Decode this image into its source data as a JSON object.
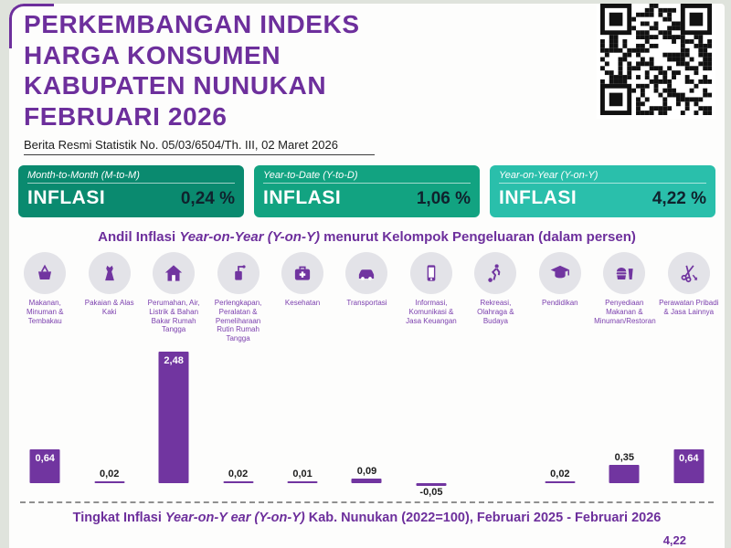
{
  "header": {
    "title_lines": [
      "PERKEMBANGAN INDEKS",
      "HARGA KONSUMEN",
      "KABUPATEN NUNUKAN",
      "FEBRUARI 2026"
    ],
    "subtitle": "Berita Resmi Statistik No. 05/03/6504/Th. III, 02 Maret 2026"
  },
  "colors": {
    "accent_purple": "#6d2f9c",
    "bar_purple": "#7135a0",
    "card_mtm": "#0a8a6f",
    "card_ytd": "#12a381",
    "card_yoy": "#2abfab"
  },
  "inflation_cards": [
    {
      "period": "Month-to-Month (M-to-M)",
      "label": "INFLASI",
      "value": "0,24 %",
      "color": "#0a8a6f"
    },
    {
      "period": "Year-to-Date (Y-to-D)",
      "label": "INFLASI",
      "value": "1,06 %",
      "color": "#12a381"
    },
    {
      "period": "Year-on-Year (Y-on-Y)",
      "label": "INFLASI",
      "value": "4,22 %",
      "color": "#2abfab"
    }
  ],
  "section": {
    "heading_prefix": "Andil Inflasi",
    "heading_italic": "Year-on-Year (Y-on-Y)",
    "heading_suffix": "menurut Kelompok Pengeluaran (dalam persen)"
  },
  "chart_data": {
    "type": "bar",
    "title": "Andil Inflasi Year-on-Year (Y-on-Y) menurut Kelompok Pengeluaran (dalam persen)",
    "unit": "persen",
    "categories": [
      "Makanan, Minuman & Tembakau",
      "Pakaian & Alas Kaki",
      "Perumahan, Air, Listrik & Bahan Bakar Rumah Tangga",
      "Perlengkapan, Peralatan & Pemeliharaan Rutin Rumah Tangga",
      "Kesehatan",
      "Transportasi",
      "Informasi, Komunikasi & Jasa Keuangan",
      "Rekreasi, Olahraga & Budaya",
      "Pendidikan",
      "Penyediaan Makanan & Minuman/Restoran",
      "Perawatan Pribadi & Jasa Lainnya"
    ],
    "icons": [
      "food-basket-icon",
      "clothing-icon",
      "house-icon",
      "household-equipment-icon",
      "health-icon",
      "transport-icon",
      "communication-finance-icon",
      "recreation-sports-icon",
      "education-icon",
      "restaurant-icon",
      "personal-care-icon"
    ],
    "values": [
      0.64,
      0.02,
      2.48,
      0.02,
      0.01,
      0.09,
      -0.05,
      0,
      0.02,
      0.35,
      0.64
    ],
    "labels": [
      "0,64",
      "0,02",
      "2,48",
      "0,02",
      "0,01",
      "0,09",
      "-0,05",
      "",
      "0,02",
      "0,35",
      "0,64"
    ],
    "ylim": [
      -0.25,
      2.6
    ],
    "grid": false,
    "legend": false
  },
  "footer": {
    "line_prefix": "Tingkat Inflasi",
    "line_italic": "Year-on-Y ear (Y-on-Y)",
    "line_suffix": "Kab. Nunukan (2022=100), Februari 2025 - Februari 2026",
    "partial_value": "4,22"
  }
}
